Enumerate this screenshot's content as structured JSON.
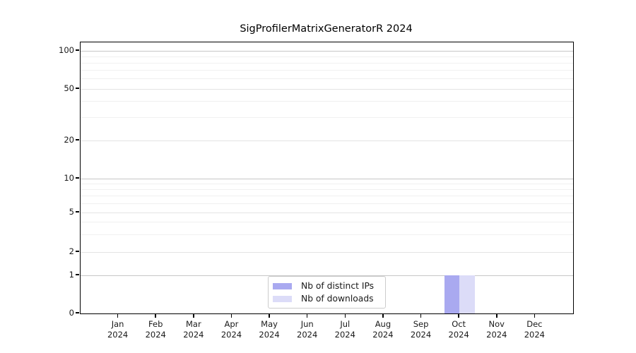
{
  "chart_data": {
    "type": "bar",
    "title": "SigProfilerMatrixGeneratorR 2024",
    "categories": [
      "Jan 2024",
      "Feb 2024",
      "Mar 2024",
      "Apr 2024",
      "May 2024",
      "Jun 2024",
      "Jul 2024",
      "Aug 2024",
      "Sep 2024",
      "Oct 2024",
      "Nov 2024",
      "Dec 2024"
    ],
    "series": [
      {
        "name": "Nb of distinct IPs",
        "color": "#a9a9f0",
        "values": [
          0,
          0,
          0,
          0,
          0,
          0,
          0,
          0,
          0,
          1,
          0,
          0
        ]
      },
      {
        "name": "Nb of downloads",
        "color": "#dcdcf8",
        "values": [
          0,
          0,
          0,
          0,
          0,
          0,
          0,
          0,
          0,
          1,
          0,
          0
        ]
      }
    ],
    "xlabel": "",
    "ylabel": "",
    "y_ticks": [
      0,
      1,
      2,
      5,
      10,
      20,
      50,
      100
    ],
    "y_minor_ticks": [
      3,
      4,
      6,
      7,
      8,
      9,
      30,
      40,
      60,
      70,
      80,
      90
    ],
    "y_decade_ticks": [
      1,
      10,
      100
    ],
    "ylim": [
      0,
      115
    ],
    "y_scale": "log-above-1 with linear 0-1 segment",
    "grid": "horizontal",
    "legend_position": "lower center",
    "colors": {
      "spine": "#000000",
      "text": "#1a1a1a",
      "grid_decade": "#c6c6c6",
      "grid_mid": "#e4e4e4",
      "grid_minor": "#f0f0f0"
    }
  }
}
